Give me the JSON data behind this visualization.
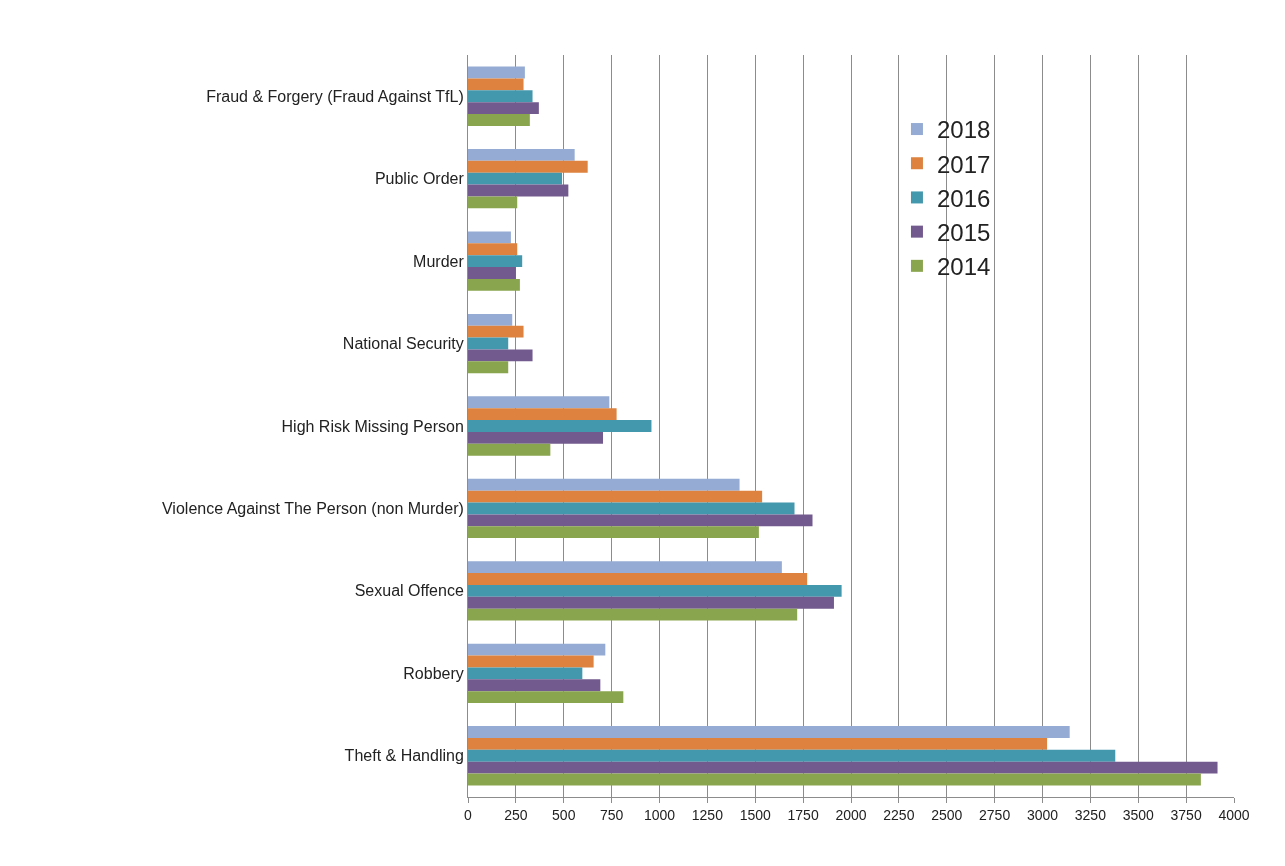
{
  "chart_data": {
    "type": "bar",
    "orientation": "horizontal",
    "categories": [
      "Fraud & Forgery (Fraud Against TfL)",
      "Public Order",
      "Murder",
      "National Security",
      "High Risk Missing Person",
      "Violence Against The Person (non Murder)",
      "Sexual Offence",
      "Robbery",
      "Theft & Handling"
    ],
    "series": [
      {
        "name": "2018",
        "color": "#95abd4",
        "values": [
          297,
          557,
          224,
          231,
          738,
          1418,
          1639,
          717,
          3142
        ]
      },
      {
        "name": "2017",
        "color": "#dd833f",
        "values": [
          290,
          625,
          257,
          290,
          776,
          1536,
          1771,
          656,
          3024
        ]
      },
      {
        "name": "2016",
        "color": "#4398ae",
        "values": [
          337,
          491,
          283,
          210,
          958,
          1705,
          1951,
          597,
          3380
        ]
      },
      {
        "name": "2015",
        "color": "#725a8e",
        "values": [
          370,
          524,
          250,
          337,
          705,
          1799,
          1911,
          691,
          3914
        ]
      },
      {
        "name": "2014",
        "color": "#89a54e",
        "values": [
          323,
          257,
          271,
          210,
          430,
          1519,
          1719,
          811,
          3827
        ]
      }
    ],
    "xlim": [
      0,
      4000
    ],
    "xticks": [
      0,
      250,
      500,
      750,
      1000,
      1250,
      1500,
      1750,
      2000,
      2250,
      2500,
      2750,
      3000,
      3250,
      3500,
      3750,
      4000
    ],
    "grid": "x",
    "legend": "top right"
  }
}
